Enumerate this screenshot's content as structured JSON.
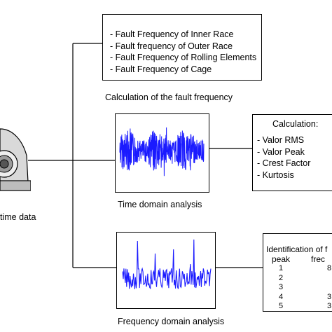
{
  "fault_frequency": {
    "items": [
      "- Fault Frequency of Inner Race",
      "- Fault frequency of Outer Race",
      "- Fault Frequency of Rolling Elements",
      "- Fault Frequency of Cage"
    ],
    "caption": "Calculation of the fault frequency"
  },
  "time_domain": {
    "caption": "Time domain analysis",
    "signal_color": "#1a1aff"
  },
  "time_calc": {
    "title": "Calculation:",
    "items": [
      "- Valor RMS",
      "- Valor Peak",
      "- Crest Factor",
      "- Kurtosis"
    ]
  },
  "frequency_domain": {
    "caption": "Frequency domain analysis",
    "signal_color": "#1a1aff"
  },
  "identification": {
    "title": "Identification of f",
    "col_peak": "peak",
    "col_freq": "frec",
    "rows": [
      {
        "peak": "1",
        "freq": "8"
      },
      {
        "peak": "2",
        "freq": ""
      },
      {
        "peak": "3",
        "freq": ""
      },
      {
        "peak": "4",
        "freq": "3"
      },
      {
        "peak": "5",
        "freq": "3"
      }
    ]
  },
  "source": {
    "caption": "time data"
  }
}
